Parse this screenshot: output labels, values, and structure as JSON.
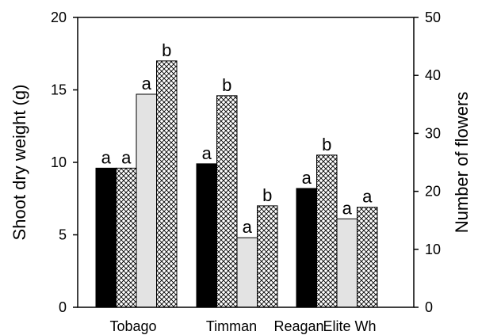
{
  "chart_data": {
    "type": "bar",
    "categories": [
      "Tobago",
      "Timman",
      "Reagan Elite Wh"
    ],
    "category_labels_shown": [
      "Tobago",
      "Timman",
      "Reagan",
      "Elite Wh"
    ],
    "ylabel": "Shoot dry weight (g)",
    "ylim": [
      0,
      20
    ],
    "yticks": [
      0,
      5,
      10,
      15,
      20
    ],
    "y2label": "Number of flowers",
    "y2lim": [
      0,
      50
    ],
    "y2ticks": [
      0,
      10,
      20,
      30,
      40,
      50
    ],
    "legend": "none",
    "grid": false,
    "series": [
      {
        "pattern": "solid-black",
        "axis": "left",
        "values": [
          9.6,
          9.9,
          8.2
        ],
        "letters": [
          "a",
          "a",
          "a"
        ]
      },
      {
        "pattern": "crosshatch",
        "axis": "left",
        "values": [
          9.6,
          14.6,
          10.5
        ],
        "letters": [
          "a",
          "b",
          "b"
        ]
      },
      {
        "pattern": "light-gray",
        "axis": "left",
        "values": [
          14.7,
          4.8,
          6.1
        ],
        "letters": [
          "a",
          "a",
          "a"
        ]
      },
      {
        "pattern": "crosshatch",
        "axis": "left",
        "values": [
          17.0,
          7.0,
          6.9
        ],
        "letters": [
          "b",
          "b",
          "a"
        ]
      }
    ],
    "colors": {
      "black_bar": "#000000",
      "gray_bar": "#e3e3e3",
      "hatch": "#000000",
      "axis": "#000000"
    }
  }
}
